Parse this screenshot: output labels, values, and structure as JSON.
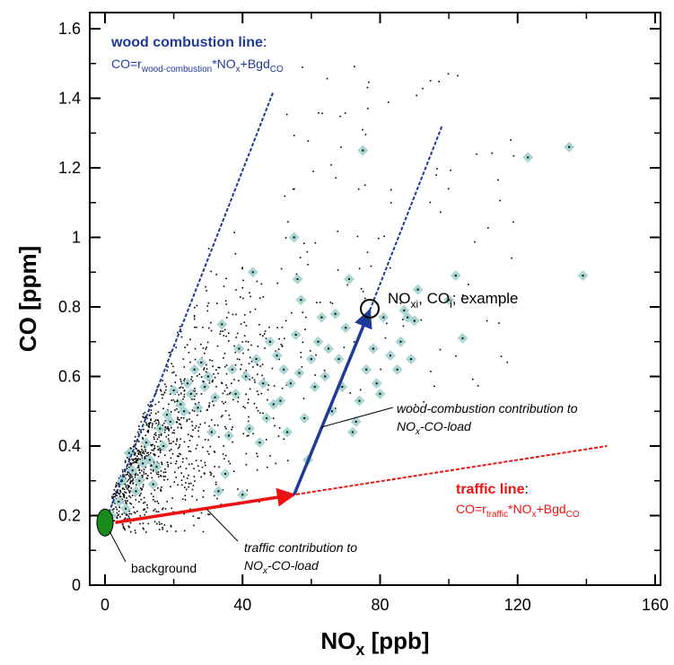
{
  "chart_data": {
    "type": "scatter",
    "xlabel": "NOx [ppb]",
    "xlabel_main": "NO",
    "xlabel_sub": "x",
    "xlabel_unit": " [ppb]",
    "ylabel": "CO [ppm]",
    "xlim": [
      0,
      160
    ],
    "ylim": [
      0,
      1.6
    ],
    "x_ticks": [
      0,
      40,
      80,
      120,
      160
    ],
    "x_tick_labels": [
      "0",
      "40",
      "80",
      "120",
      "160"
    ],
    "y_ticks": [
      0,
      0.2,
      0.4,
      0.6,
      0.8,
      1,
      1.2,
      1.4,
      1.6
    ],
    "y_tick_labels": [
      "0",
      "0.2",
      "0.4",
      "0.6",
      "0.8",
      "1",
      "1.2",
      "1.4",
      "1.6"
    ],
    "colors": {
      "wood": "#1f3a99",
      "traffic": "#ee1111",
      "background": "#1a8a1a",
      "diamond": "#a9d5d3"
    },
    "background_point": {
      "x": 0,
      "y": 0.18,
      "label": "background"
    },
    "wood_combustion_line": {
      "title": "wood combustion line",
      "eq_prefix": "CO=r",
      "eq_sub": "wood-combustion",
      "eq_mid": "*NO",
      "eq_sub2": "x",
      "eq_suffix": "+Bgd",
      "eq_sub3": "CO",
      "from": [
        0,
        0.18
      ],
      "to": [
        49,
        1.42
      ]
    },
    "traffic_line": {
      "title": "traffic line",
      "eq_prefix": "CO=r",
      "eq_sub": "traffic",
      "eq_mid": "*NO",
      "eq_sub2": "x",
      "eq_suffix": "+Bgd",
      "eq_sub3": "CO",
      "from": [
        3,
        0.18
      ],
      "to": [
        146,
        0.4
      ]
    },
    "traffic_contribution_arrow": {
      "from": [
        3,
        0.18
      ],
      "to": [
        55,
        0.26
      ]
    },
    "wood_contribution_arrow": {
      "from": [
        55,
        0.26
      ],
      "to": [
        77,
        0.79
      ]
    },
    "wood_parallel_line": {
      "from": [
        77,
        0.79
      ],
      "to": [
        98,
        1.32
      ]
    },
    "example_point": {
      "x": 77,
      "y": 0.795,
      "label_pre": "NO",
      "label_sub": "xi",
      "label_mid": ", CO",
      "label_sub2": "i",
      "label_post": "; example"
    },
    "annotations": {
      "wood_contribution_line1": "wood-combustion contribution to",
      "wood_contribution_line2_pre": "NO",
      "wood_contribution_line2_sub": "x",
      "wood_contribution_line2_post": "-CO-load",
      "traffic_contribution_line1": "traffic contribution to",
      "traffic_contribution_line2_pre": "NO",
      "traffic_contribution_line2_sub": "x",
      "traffic_contribution_line2_post": "-CO-load"
    },
    "highlighted_points": [
      [
        2,
        0.2
      ],
      [
        4,
        0.24
      ],
      [
        5,
        0.3
      ],
      [
        6,
        0.22
      ],
      [
        7,
        0.38
      ],
      [
        8,
        0.33
      ],
      [
        9,
        0.27
      ],
      [
        10,
        0.3
      ],
      [
        11,
        0.35
      ],
      [
        12,
        0.41
      ],
      [
        13,
        0.36
      ],
      [
        14,
        0.29
      ],
      [
        15,
        0.34
      ],
      [
        16,
        0.45
      ],
      [
        17,
        0.4
      ],
      [
        18,
        0.49
      ],
      [
        19,
        0.47
      ],
      [
        20,
        0.56
      ],
      [
        22,
        0.52
      ],
      [
        23,
        0.5
      ],
      [
        24,
        0.58
      ],
      [
        25,
        0.55
      ],
      [
        26,
        0.62
      ],
      [
        27,
        0.51
      ],
      [
        28,
        0.64
      ],
      [
        29,
        0.57
      ],
      [
        30,
        0.6
      ],
      [
        31,
        0.44
      ],
      [
        32,
        0.54
      ],
      [
        33,
        0.27
      ],
      [
        34,
        0.75
      ],
      [
        35,
        0.32
      ],
      [
        36,
        0.43
      ],
      [
        37,
        0.62
      ],
      [
        38,
        0.55
      ],
      [
        39,
        0.68
      ],
      [
        40,
        0.26
      ],
      [
        41,
        0.6
      ],
      [
        42,
        0.45
      ],
      [
        43,
        0.9
      ],
      [
        44,
        0.65
      ],
      [
        45,
        0.41
      ],
      [
        46,
        0.58
      ],
      [
        47,
        0.48
      ],
      [
        48,
        0.7
      ],
      [
        49,
        0.52
      ],
      [
        50,
        0.66
      ],
      [
        51,
        0.53
      ],
      [
        52,
        0.62
      ],
      [
        53,
        0.44
      ],
      [
        54,
        0.58
      ],
      [
        55,
        1.0
      ],
      [
        55.5,
        0.72
      ],
      [
        56,
        0.88
      ],
      [
        56.5,
        0.61
      ],
      [
        57,
        0.82
      ],
      [
        58,
        0.48
      ],
      [
        59,
        0.36
      ],
      [
        60,
        0.65
      ],
      [
        61,
        0.57
      ],
      [
        62,
        0.7
      ],
      [
        63,
        0.77
      ],
      [
        64,
        0.6
      ],
      [
        65,
        0.68
      ],
      [
        66,
        0.5
      ],
      [
        67,
        0.78
      ],
      [
        68,
        0.65
      ],
      [
        69,
        0.57
      ],
      [
        70,
        0.74
      ],
      [
        71,
        0.88
      ],
      [
        72,
        0.44
      ],
      [
        73,
        0.47
      ],
      [
        74,
        0.53
      ],
      [
        75,
        1.25
      ],
      [
        76,
        0.62
      ],
      [
        78,
        0.68
      ],
      [
        79,
        0.58
      ],
      [
        80,
        0.55
      ],
      [
        81,
        0.77
      ],
      [
        83,
        0.66
      ],
      [
        85,
        0.62
      ],
      [
        86,
        0.7
      ],
      [
        87,
        0.79
      ],
      [
        88,
        0.77
      ],
      [
        89,
        0.65
      ],
      [
        90,
        0.76
      ],
      [
        91,
        0.85
      ],
      [
        100,
        0.82
      ],
      [
        102,
        0.89
      ],
      [
        104,
        0.71
      ],
      [
        123,
        1.23
      ],
      [
        135,
        1.26
      ],
      [
        139,
        0.89
      ]
    ],
    "scatter_n": 1400
  }
}
